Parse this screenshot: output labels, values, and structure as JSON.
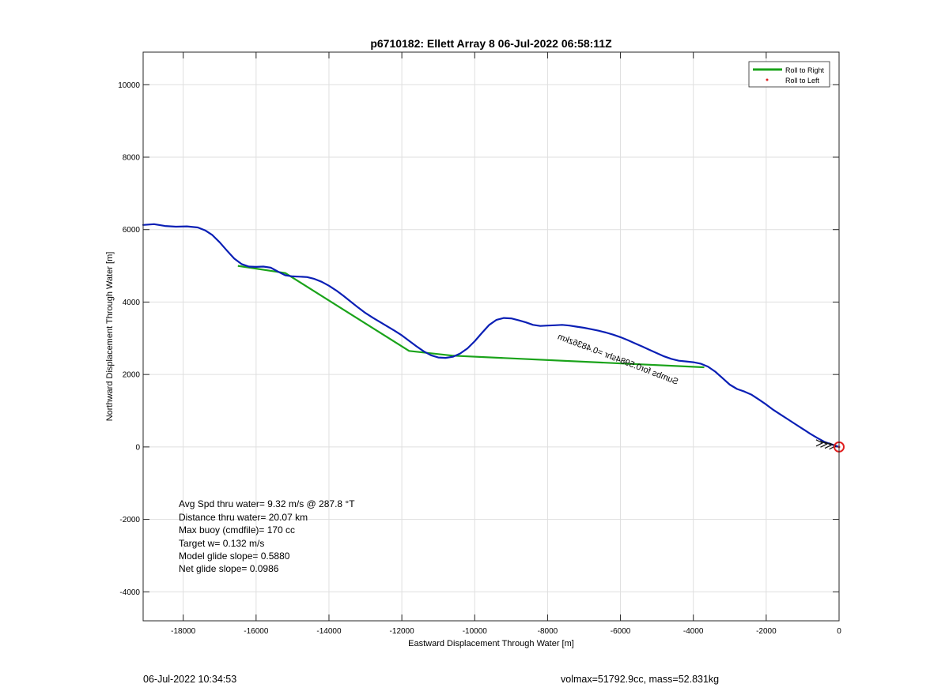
{
  "chart_data": {
    "type": "line",
    "title": "p6710182: Ellett Array 8 06-Jul-2022 06:58:11Z",
    "xlabel": "Eastward Displacement Through Water [m]",
    "ylabel": "Northward Displacement Through Water [m]",
    "xlim": [
      -19100,
      0
    ],
    "ylim": [
      -4800,
      10900
    ],
    "xticks": [
      -18000,
      -16000,
      -14000,
      -12000,
      -10000,
      -8000,
      -6000,
      -4000,
      -2000,
      0
    ],
    "yticks": [
      -4000,
      -2000,
      0,
      2000,
      4000,
      6000,
      8000,
      10000
    ],
    "grid": true,
    "legend_position": "top-right",
    "legend": [
      {
        "name": "Roll to Right",
        "color": "#1aa31a",
        "marker": "line"
      },
      {
        "name": "Roll to Left",
        "color": "#e02020",
        "marker": "dot"
      }
    ],
    "series": [
      {
        "role": "track",
        "color": "#0a1fb5",
        "x": [
          -19100,
          -18800,
          -18500,
          -18200,
          -17900,
          -17600,
          -17400,
          -17200,
          -17000,
          -16800,
          -16600,
          -16400,
          -16200,
          -16000,
          -15800,
          -15600,
          -15400,
          -15200,
          -15000,
          -14800,
          -14600,
          -14400,
          -14200,
          -14000,
          -13800,
          -13600,
          -13400,
          -13200,
          -13000,
          -12800,
          -12600,
          -12400,
          -12200,
          -12000,
          -11800,
          -11600,
          -11400,
          -11200,
          -11000,
          -10800,
          -10600,
          -10400,
          -10200,
          -10000,
          -9800,
          -9600,
          -9400,
          -9200,
          -9000,
          -8800,
          -8600,
          -8400,
          -8200,
          -8000,
          -7800,
          -7600,
          -7400,
          -7200,
          -7000,
          -6800,
          -6600,
          -6400,
          -6200,
          -6000,
          -5800,
          -5600,
          -5400,
          -5200,
          -5000,
          -4800,
          -4600,
          -4400,
          -4200,
          -4000,
          -3800,
          -3600,
          -3400,
          -3200,
          -3000,
          -2800,
          -2600,
          -2400,
          -2200,
          -2000,
          -1800,
          -1600,
          -1400,
          -1200,
          -1000,
          -800,
          -600,
          -400,
          -200,
          0
        ],
        "y": [
          6130,
          6150,
          6100,
          6080,
          6090,
          6060,
          5980,
          5850,
          5650,
          5420,
          5200,
          5050,
          4980,
          4970,
          4980,
          4950,
          4840,
          4740,
          4710,
          4700,
          4690,
          4640,
          4560,
          4450,
          4320,
          4170,
          4010,
          3850,
          3700,
          3570,
          3450,
          3330,
          3210,
          3080,
          2930,
          2780,
          2640,
          2530,
          2470,
          2460,
          2490,
          2580,
          2720,
          2920,
          3150,
          3370,
          3510,
          3560,
          3550,
          3500,
          3440,
          3370,
          3340,
          3350,
          3360,
          3370,
          3350,
          3320,
          3290,
          3250,
          3210,
          3160,
          3100,
          3030,
          2950,
          2860,
          2770,
          2680,
          2590,
          2500,
          2430,
          2380,
          2360,
          2340,
          2300,
          2220,
          2080,
          1900,
          1720,
          1600,
          1530,
          1440,
          1310,
          1170,
          1020,
          890,
          760,
          630,
          500,
          370,
          250,
          140,
          70,
          0
        ]
      },
      {
        "role": "roll-to-right",
        "color": "#1aa31a",
        "segments": [
          {
            "x": [
              -16500,
              -15200,
              -11800,
              -10600
            ],
            "y": [
              5000,
              4800,
              2650,
              2520
            ]
          },
          {
            "x": [
              -10600,
              -3700
            ],
            "y": [
              2520,
              2200
            ]
          }
        ]
      }
    ],
    "marker_origin": {
      "x": 0,
      "y": 0,
      "color": "#e02020"
    },
    "annotations": {
      "rotated_label": "Sumbs for0.5984shr =0.4836zkm",
      "stats": [
        "Avg Spd thru water=  9.32 m/s @ 287.8 °T",
        "Distance thru water= 20.07 km",
        "Max buoy (cmdfile)= 170 cc",
        "Target w= 0.132 m/s",
        "Model glide slope= 0.5880",
        "Net glide slope= 0.0986"
      ]
    }
  },
  "footer": {
    "timestamp": "06-Jul-2022 10:34:53",
    "info": "volmax=51792.9cc, mass=52.831kg"
  }
}
